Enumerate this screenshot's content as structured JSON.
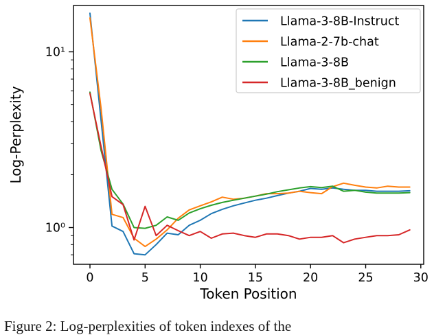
{
  "figure": {
    "caption": "Figure 2: Log-perplexities of token indexes of the"
  },
  "chart_data": {
    "type": "line",
    "title": "",
    "xlabel": "Token Position",
    "ylabel": "Log-Perplexity",
    "y_scale": "log",
    "grid": false,
    "legend_position": "upper right",
    "legend_border_color": "#cccccc",
    "axis_color": "#000000",
    "x_ticks": [
      0,
      5,
      10,
      15,
      20,
      25,
      30
    ],
    "y_major_ticks": [
      10,
      1
    ],
    "y_major_tick_labels": [
      "10¹",
      "10⁰"
    ],
    "y_minor_ticks": [
      0.7,
      0.8,
      0.9,
      2,
      3,
      4,
      5,
      6,
      7,
      8,
      9
    ],
    "xlim": [
      -1.5,
      30.3
    ],
    "ylim": [
      0.62,
      18.5
    ],
    "x": [
      0,
      1,
      2,
      3,
      4,
      5,
      6,
      7,
      8,
      9,
      10,
      11,
      12,
      13,
      14,
      15,
      16,
      17,
      18,
      19,
      20,
      21,
      22,
      23,
      24,
      25,
      26,
      27,
      28,
      29
    ],
    "series": [
      {
        "name": "Llama-3-8B-Instruct",
        "color": "#1f77b4",
        "values": [
          16.6,
          4.1,
          1.02,
          0.95,
          0.71,
          0.7,
          0.8,
          0.93,
          0.91,
          1.03,
          1.1,
          1.2,
          1.27,
          1.33,
          1.38,
          1.43,
          1.47,
          1.52,
          1.57,
          1.61,
          1.67,
          1.65,
          1.68,
          1.65,
          1.63,
          1.63,
          1.61,
          1.61,
          1.61,
          1.62
        ]
      },
      {
        "name": "Llama-2-7b-chat",
        "color": "#ff7f0e",
        "values": [
          15.6,
          4.8,
          1.19,
          1.14,
          0.87,
          0.78,
          0.86,
          0.97,
          1.13,
          1.26,
          1.33,
          1.4,
          1.49,
          1.45,
          1.47,
          1.51,
          1.56,
          1.56,
          1.57,
          1.61,
          1.58,
          1.56,
          1.71,
          1.79,
          1.74,
          1.7,
          1.68,
          1.72,
          1.7,
          1.7
        ]
      },
      {
        "name": "Llama-3-8B",
        "color": "#2ca02c",
        "values": [
          5.9,
          2.75,
          1.65,
          1.36,
          1.0,
          0.99,
          1.03,
          1.15,
          1.1,
          1.21,
          1.28,
          1.34,
          1.39,
          1.43,
          1.47,
          1.51,
          1.55,
          1.6,
          1.64,
          1.68,
          1.71,
          1.69,
          1.72,
          1.61,
          1.63,
          1.59,
          1.57,
          1.57,
          1.57,
          1.58
        ]
      },
      {
        "name": "Llama-3-8B_benign",
        "color": "#d62728",
        "values": [
          5.8,
          2.9,
          1.5,
          1.35,
          0.85,
          1.32,
          0.9,
          1.03,
          0.96,
          0.9,
          0.95,
          0.87,
          0.92,
          0.93,
          0.9,
          0.88,
          0.92,
          0.92,
          0.9,
          0.86,
          0.88,
          0.88,
          0.9,
          0.82,
          0.86,
          0.88,
          0.9,
          0.9,
          0.91,
          0.97
        ]
      }
    ]
  }
}
